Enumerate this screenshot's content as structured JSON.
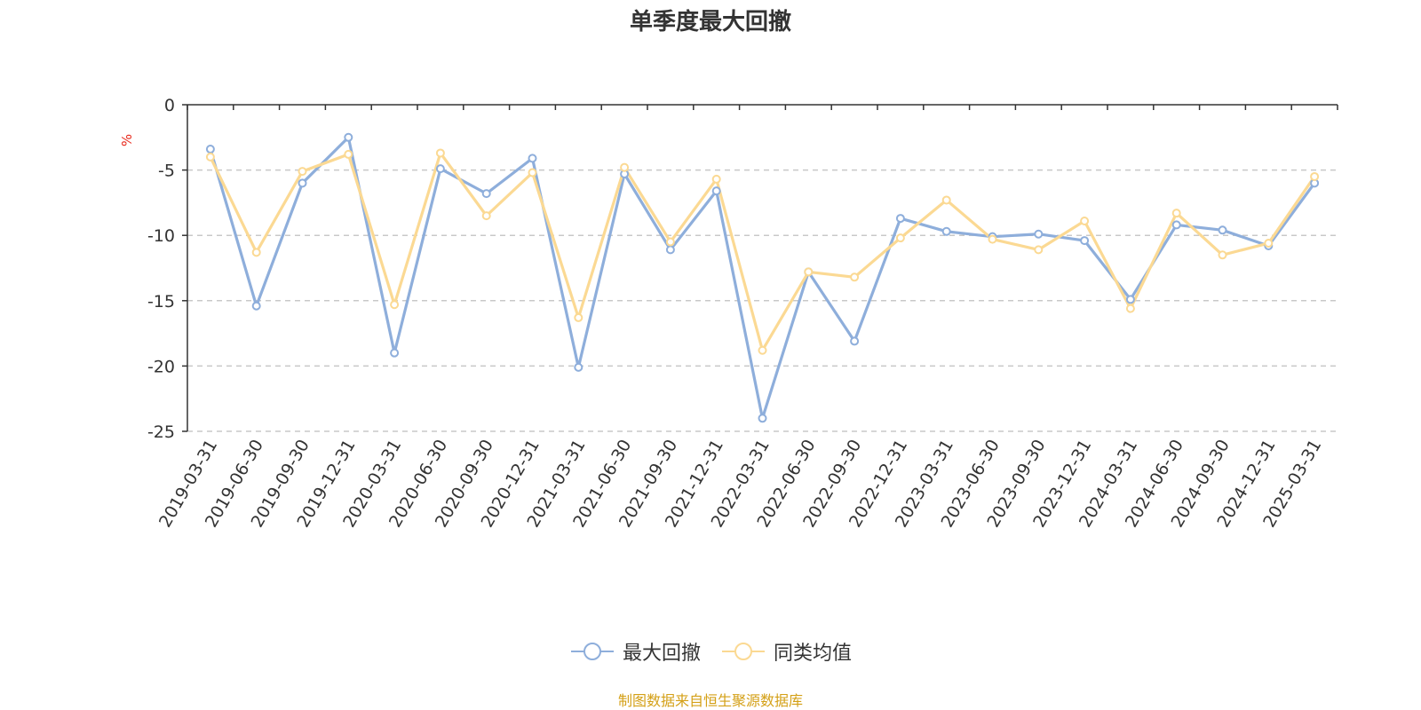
{
  "chart_data": {
    "type": "line",
    "title": "单季度最大回撤",
    "ylabel": "%",
    "ylim": [
      -25,
      0
    ],
    "yticks": [
      0,
      -5,
      -10,
      -15,
      -20,
      -25
    ],
    "grid": true,
    "legend_position": "bottom-center",
    "x": [
      "2019-03-31",
      "2019-06-30",
      "2019-09-30",
      "2019-12-31",
      "2020-03-31",
      "2020-06-30",
      "2020-09-30",
      "2020-12-31",
      "2021-03-31",
      "2021-06-30",
      "2021-09-30",
      "2021-12-31",
      "2022-03-31",
      "2022-06-30",
      "2022-09-30",
      "2022-12-31",
      "2023-03-31",
      "2023-06-30",
      "2023-09-30",
      "2023-12-31",
      "2024-03-31",
      "2024-06-30",
      "2024-09-30",
      "2024-12-31",
      "2025-03-31"
    ],
    "series": [
      {
        "name": "最大回撤",
        "color": "#8eaedb",
        "values": [
          -3.4,
          -15.4,
          -6.0,
          -2.5,
          -19.0,
          -4.9,
          -6.8,
          -4.1,
          -20.1,
          -5.3,
          -11.1,
          -6.6,
          -24.0,
          -12.8,
          -18.1,
          -8.7,
          -9.7,
          -10.1,
          -9.9,
          -10.4,
          -14.9,
          -9.2,
          -9.6,
          -10.8,
          -6.0
        ]
      },
      {
        "name": "同类均值",
        "color": "#fbd993",
        "values": [
          -4.0,
          -11.3,
          -5.1,
          -3.8,
          -15.3,
          -3.7,
          -8.5,
          -5.2,
          -16.3,
          -4.8,
          -10.5,
          -5.7,
          -18.8,
          -12.8,
          -13.2,
          -10.2,
          -7.3,
          -10.3,
          -11.1,
          -8.9,
          -15.6,
          -8.3,
          -11.5,
          -10.6,
          -5.5
        ]
      }
    ]
  },
  "source_note": "制图数据来自恒生聚源数据库"
}
